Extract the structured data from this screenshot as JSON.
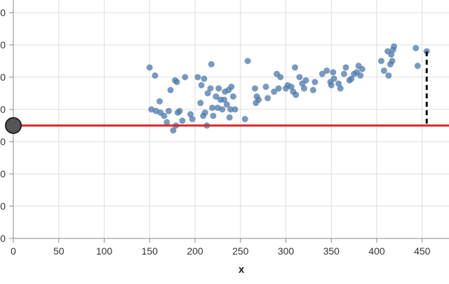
{
  "chart_data": {
    "type": "scatter",
    "title": "",
    "xlabel": "x",
    "ylabel": "",
    "xlim": [
      0,
      460
    ],
    "ylim": [
      0,
      140
    ],
    "x_ticks": [
      0,
      50,
      100,
      150,
      200,
      250,
      300,
      350,
      400,
      450
    ],
    "x_tick_labels": [
      "0",
      "50",
      "100",
      "150",
      "200",
      "250",
      "300",
      "350",
      "400",
      "450"
    ],
    "y_ticks": [
      0,
      20,
      40,
      60,
      80,
      100,
      120,
      140
    ],
    "y_tick_labels": [
      "0",
      "0",
      "0",
      "0",
      "0",
      "0",
      "0",
      "0"
    ],
    "grid": true,
    "colors": {
      "points": "#4c78a8",
      "horizontal_line": "#d62728",
      "handle": "#555555",
      "residual": "#000000"
    },
    "series": [
      {
        "points": [
          [
            150,
            106
          ],
          [
            152,
            80
          ],
          [
            156,
            101
          ],
          [
            157,
            79
          ],
          [
            161,
            85
          ],
          [
            162,
            78
          ],
          [
            166,
            76
          ],
          [
            169,
            72
          ],
          [
            171,
            79
          ],
          [
            173,
            92
          ],
          [
            176,
            67
          ],
          [
            178,
            98
          ],
          [
            179,
            70
          ],
          [
            180,
            97
          ],
          [
            181,
            78
          ],
          [
            183,
            79
          ],
          [
            186,
            73
          ],
          [
            189,
            100
          ],
          [
            195,
            77
          ],
          [
            197,
            74
          ],
          [
            203,
            100
          ],
          [
            206,
            84
          ],
          [
            207,
            95
          ],
          [
            209,
            76
          ],
          [
            210,
            99
          ],
          [
            211,
            78
          ],
          [
            213,
            70
          ],
          [
            214,
            90
          ],
          [
            217,
            93
          ],
          [
            218,
            108
          ],
          [
            219,
            81
          ],
          [
            220,
            76
          ],
          [
            223,
            88
          ],
          [
            225,
            81
          ],
          [
            226,
            93
          ],
          [
            228,
            86
          ],
          [
            230,
            80
          ],
          [
            232,
            86
          ],
          [
            233,
            91
          ],
          [
            235,
            83
          ],
          [
            237,
            92
          ],
          [
            238,
            75
          ],
          [
            239,
            80
          ],
          [
            240,
            94
          ],
          [
            242,
            88
          ],
          [
            244,
            80
          ],
          [
            255,
            74
          ],
          [
            258,
            110
          ],
          [
            266,
            93
          ],
          [
            267,
            84
          ],
          [
            268,
            88
          ],
          [
            270,
            86
          ],
          [
            278,
            94
          ],
          [
            280,
            87
          ],
          [
            287,
            91
          ],
          [
            290,
            102
          ],
          [
            292,
            93
          ],
          [
            294,
            100
          ],
          [
            300,
            93
          ],
          [
            302,
            95
          ],
          [
            306,
            94
          ],
          [
            308,
            91
          ],
          [
            310,
            106
          ],
          [
            311,
            89
          ],
          [
            315,
            100
          ],
          [
            318,
            96
          ],
          [
            320,
            93
          ],
          [
            322,
            98
          ],
          [
            330,
            92
          ],
          [
            332,
            97
          ],
          [
            340,
            102
          ],
          [
            345,
            104
          ],
          [
            349,
            97
          ],
          [
            350,
            95
          ],
          [
            352,
            103
          ],
          [
            353,
            99
          ],
          [
            358,
            96
          ],
          [
            360,
            93
          ],
          [
            364,
            102
          ],
          [
            366,
            106
          ],
          [
            370,
            98
          ],
          [
            372,
            99
          ],
          [
            375,
            102
          ],
          [
            378,
            103
          ],
          [
            380,
            107
          ],
          [
            382,
            101
          ],
          [
            384,
            105
          ],
          [
            405,
            110
          ],
          [
            408,
            104
          ],
          [
            412,
            116
          ],
          [
            413,
            101
          ],
          [
            415,
            108
          ],
          [
            416,
            114
          ],
          [
            417,
            110
          ],
          [
            418,
            117
          ],
          [
            419,
            119
          ],
          [
            443,
            118
          ],
          [
            445,
            107
          ],
          [
            455,
            116
          ]
        ]
      }
    ],
    "horizontal_line_y": 70,
    "residual_from": [
      455,
      116
    ]
  }
}
